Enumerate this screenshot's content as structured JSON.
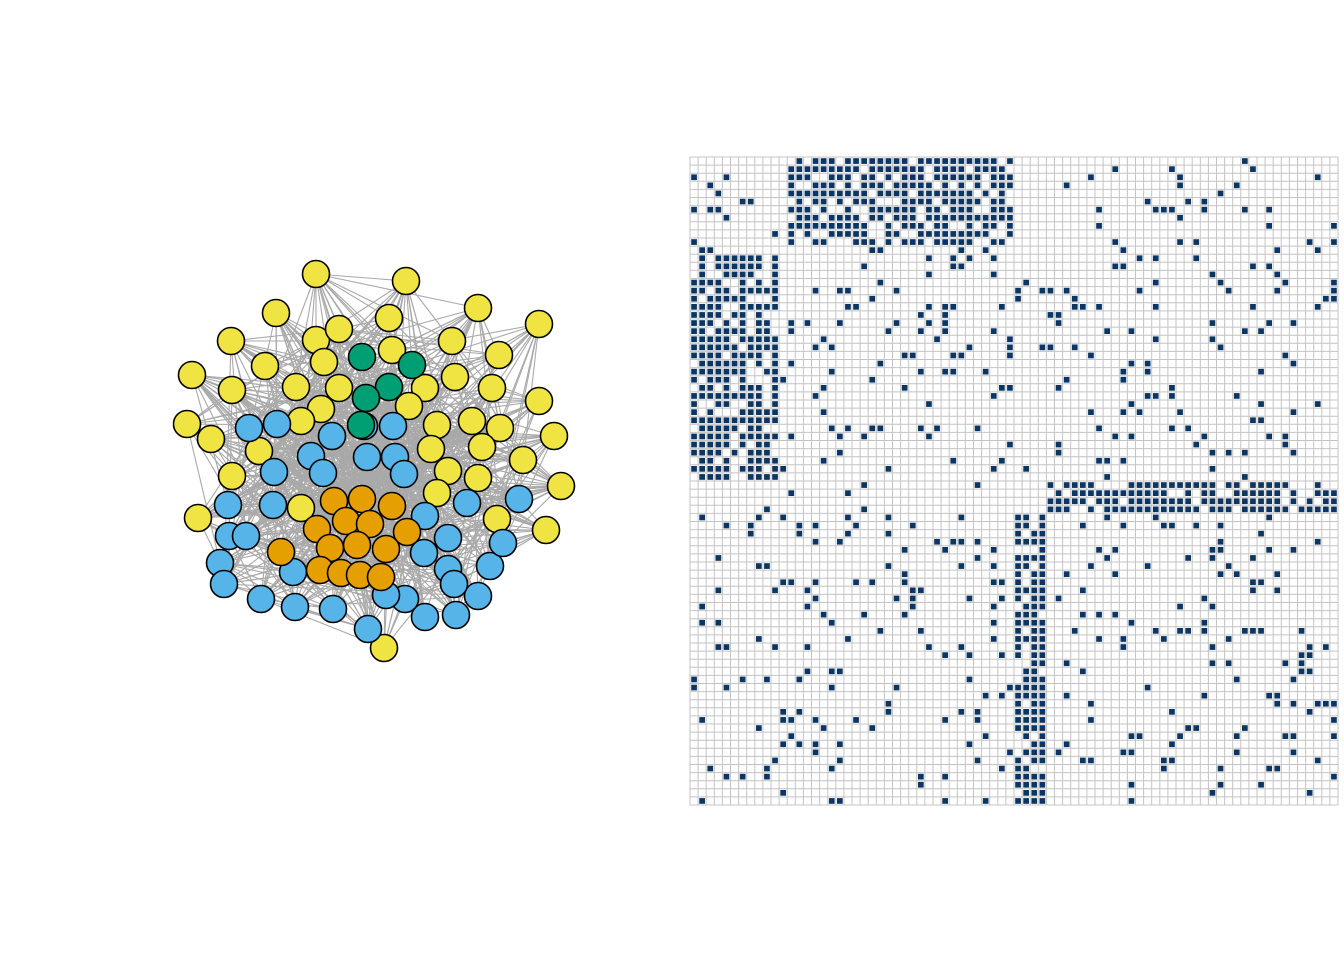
{
  "figure": {
    "panels": [
      "network-graph",
      "adjacency-matrix"
    ],
    "colors": {
      "edge": "#a9a9a9",
      "node_stroke": "#000000",
      "matrix_grid": "#c4c4c4",
      "matrix_filled": "#0b3563",
      "group_colors": {
        "yellow": "#f0e442",
        "blue": "#56b4e9",
        "orange": "#e69f00",
        "green": "#009e73"
      }
    }
  },
  "network": {
    "node_count": 112,
    "groups": [
      {
        "color": "yellow",
        "count": 52
      },
      {
        "color": "blue",
        "count": 36
      },
      {
        "color": "orange",
        "count": 19
      },
      {
        "color": "green",
        "count": 5
      }
    ],
    "edges_per_node_estimate": 8
  },
  "adjacency_matrix": {
    "size": 80,
    "blocks": [
      {
        "rows": [
          0,
          11
        ],
        "cols": [
          12,
          40
        ],
        "density": 0.72
      },
      {
        "rows": [
          12,
          40
        ],
        "cols": [
          0,
          11
        ],
        "density": 0.72
      },
      {
        "rows": [
          40,
          44
        ],
        "cols": [
          44,
          80
        ],
        "density": 0.78
      },
      {
        "rows": [
          44,
          80
        ],
        "cols": [
          40,
          44
        ],
        "density": 0.78
      }
    ],
    "background_density": 0.09
  }
}
